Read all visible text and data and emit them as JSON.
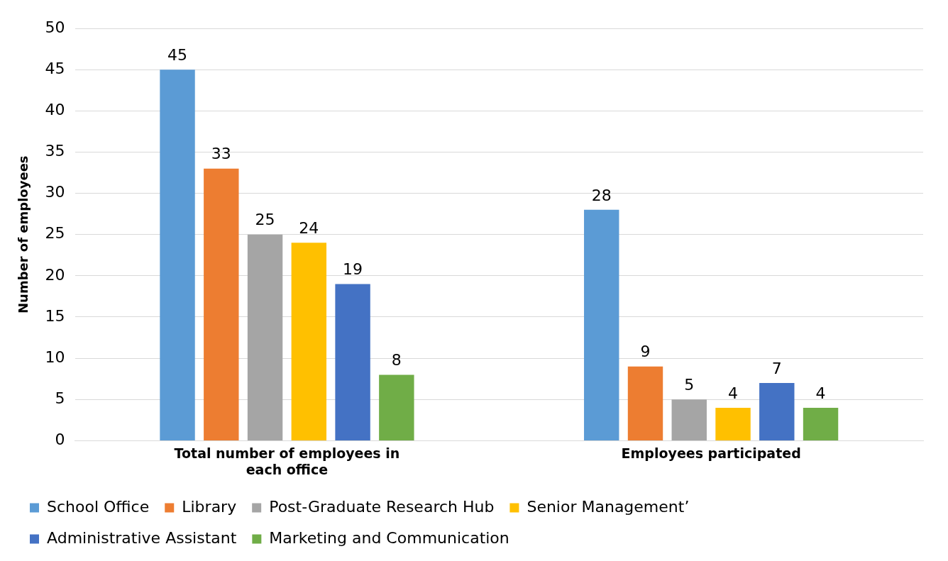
{
  "chart_data": {
    "type": "bar",
    "ylabel": "Number of employees",
    "categories": [
      "Total number of employees in each office",
      "Employees participated"
    ],
    "series": [
      {
        "name": "School Office",
        "color": "#5b9bd5",
        "values": [
          45,
          28
        ]
      },
      {
        "name": "Library",
        "color": "#ed7d31",
        "values": [
          33,
          9
        ]
      },
      {
        "name": "Post-Graduate Research Hub",
        "color": "#a5a5a5",
        "values": [
          25,
          5
        ]
      },
      {
        "name": "Senior Management’",
        "color": "#ffc000",
        "values": [
          24,
          4
        ]
      },
      {
        "name": "Administrative Assistant",
        "color": "#4472c4",
        "values": [
          19,
          7
        ]
      },
      {
        "name": "Marketing and Communication",
        "color": "#70ad47",
        "values": [
          8,
          4
        ]
      }
    ],
    "ylim": [
      0,
      50
    ],
    "yticks": [
      0,
      5,
      10,
      15,
      20,
      25,
      30,
      35,
      40,
      45,
      50
    ],
    "grid": "y",
    "legend": "bottom",
    "data_labels": true
  }
}
